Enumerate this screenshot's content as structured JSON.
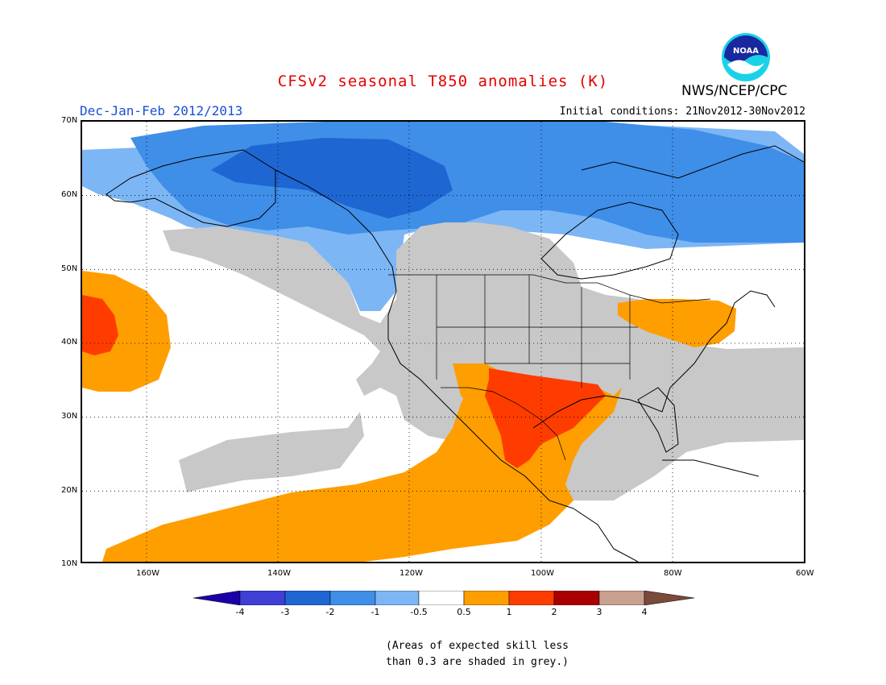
{
  "header": {
    "title": "CFSv2 seasonal T850 anomalies (K)",
    "season": "Dec-Jan-Feb 2012/2013",
    "initial_conditions": "Initial conditions: 21Nov2012-30Nov2012",
    "agency": "NWS/NCEP/CPC",
    "logo_text": "NOAA"
  },
  "map": {
    "lat_labels": [
      "70N",
      "60N",
      "50N",
      "40N",
      "30N",
      "20N",
      "10N"
    ],
    "lon_labels": [
      "160W",
      "140W",
      "120W",
      "100W",
      "80W",
      "60W"
    ],
    "gridlines": "dotted",
    "regions": [
      {
        "name": "cold-arctic-band",
        "category": "-2 to -1"
      },
      {
        "name": "cold-core-yukon",
        "category": "-3 to -2"
      },
      {
        "name": "warm-southern-plains",
        "category": "1 to 2"
      },
      {
        "name": "warm-northeast-pacific",
        "category": "0.5 to 1"
      },
      {
        "name": "low-skill-grey",
        "category": "skill < 0.3"
      }
    ]
  },
  "colorbar": {
    "labels": [
      "-4",
      "-3",
      "-2",
      "-1",
      "-0.5",
      "0.5",
      "1",
      "2",
      "3",
      "4"
    ],
    "colors": [
      "#1a00a8",
      "#3f3fd6",
      "#1e66d2",
      "#3f8ee8",
      "#7cb6f5",
      "#ffffff",
      "#ff9e00",
      "#ff3c00",
      "#a80000",
      "#c8a090",
      "#7a4a3a"
    ]
  },
  "note": {
    "line1": "(Areas of expected skill less",
    "line2": "than 0.3 are shaded in grey.)"
  }
}
